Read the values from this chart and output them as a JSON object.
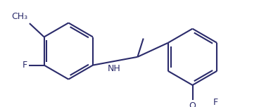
{
  "bg_color": "#ffffff",
  "bond_color": "#2b2b6b",
  "atom_color": "#2b2b6b",
  "lw": 1.5,
  "fs": 9.0,
  "dpi": 100,
  "figsize": [
    3.95,
    1.52
  ],
  "r": 0.58,
  "dg": 0.055,
  "lcx": 1.3,
  "lcy": 2.3,
  "rcx": 3.85,
  "rcy": 2.18,
  "cc_x": 2.72,
  "cc_y": 2.18,
  "xlim": [
    0.25,
    5.25
  ],
  "ylim": [
    1.15,
    3.35
  ]
}
